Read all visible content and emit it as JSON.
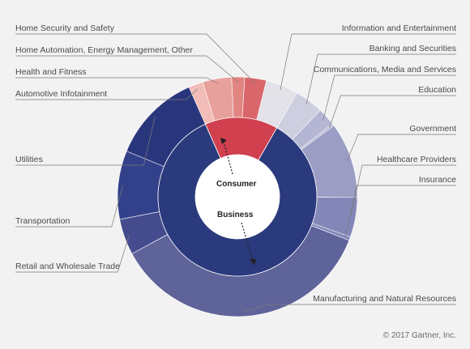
{
  "chart_data": {
    "type": "sunburst",
    "inner_ring": [
      {
        "name": "Consumer",
        "color": "#d0404f"
      },
      {
        "name": "Business",
        "color": "#2b3a7d"
      }
    ],
    "outer_ring": [
      {
        "name": "Information and Entertainment",
        "group": "Consumer",
        "value": 4.5,
        "color": "#e2e2e8",
        "side": "right"
      },
      {
        "name": "Banking and Securities",
        "group": "Business",
        "value": 4.0,
        "color": "#cdcfe0",
        "side": "right"
      },
      {
        "name": "Communications, Media and Services",
        "group": "Business",
        "value": 2.5,
        "color": "#b4b6d3",
        "side": "right"
      },
      {
        "name": "Education",
        "group": "Business",
        "value": 0.3,
        "color": "#b4b6d3",
        "side": "right"
      },
      {
        "name": "Government",
        "group": "Business",
        "value": 10.5,
        "color": "#9b9dc4",
        "side": "right"
      },
      {
        "name": "Healthcare Providers",
        "group": "Business",
        "value": 5.5,
        "color": "#8387b8",
        "side": "right"
      },
      {
        "name": "Insurance",
        "group": "Business",
        "value": 0.5,
        "color": "#8387b8",
        "side": "right"
      },
      {
        "name": "Manufacturing and Natural Resources",
        "group": "Business",
        "value": 37.2,
        "color": "#5e6399",
        "side": "right"
      },
      {
        "name": "Retail and Wholesale Trade",
        "group": "Business",
        "value": 5.0,
        "color": "#454c8e",
        "side": "left"
      },
      {
        "name": "Transportation",
        "group": "Business",
        "value": 9.5,
        "color": "#33408a",
        "side": "left"
      },
      {
        "name": "Utilities",
        "group": "Business",
        "value": 12.5,
        "color": "#2a367c",
        "side": "left"
      },
      {
        "name": "Automotive Infotainment",
        "group": "Consumer",
        "value": 2.0,
        "color": "#f2bcb8",
        "side": "left"
      },
      {
        "name": "Health and Fitness",
        "group": "Consumer",
        "value": 4.0,
        "color": "#e8a09c",
        "side": "left"
      },
      {
        "name": "Home Automation, Energy Management, Other",
        "group": "Consumer",
        "value": 1.8,
        "color": "#e08580",
        "side": "left"
      },
      {
        "name": "Home Security and Safety",
        "group": "Consumer",
        "value": 3.0,
        "color": "#d9666a",
        "side": "left"
      }
    ]
  },
  "credit": "© 2017 Gartner, Inc."
}
